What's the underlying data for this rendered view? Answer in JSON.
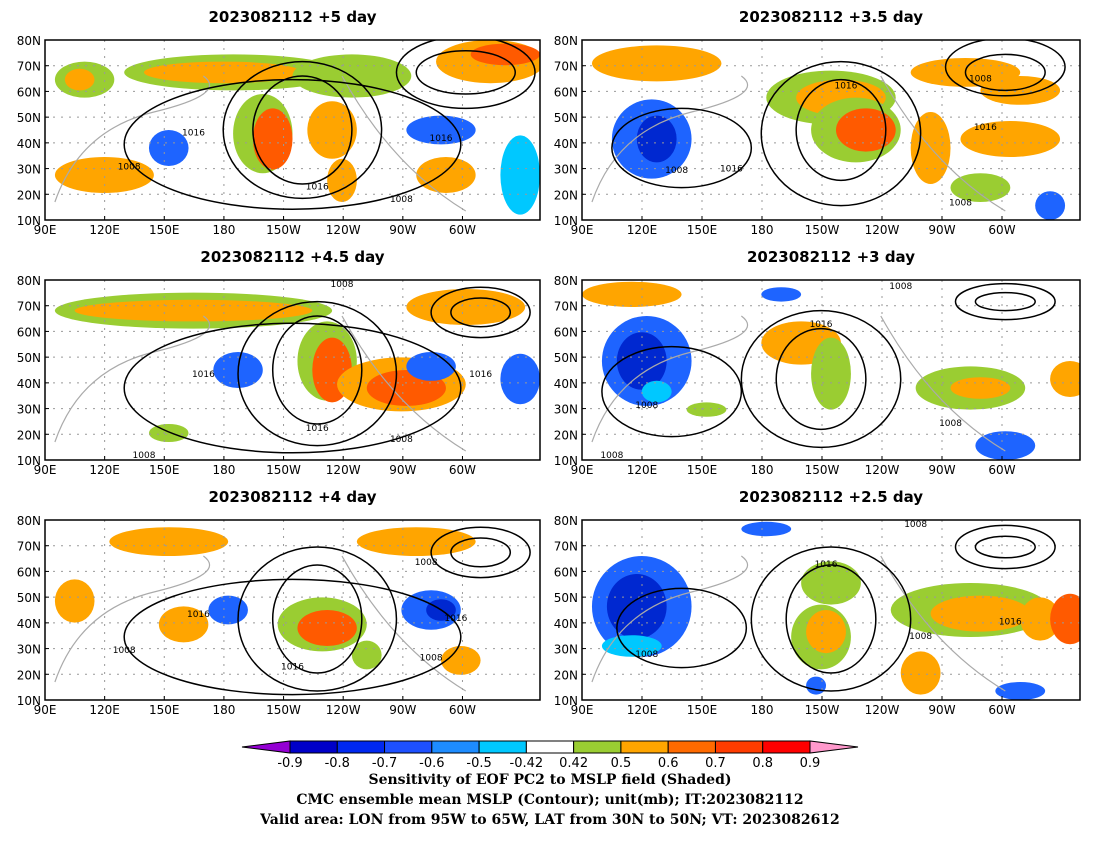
{
  "panels": [
    {
      "title": "2023082112  +5 day",
      "contour_labels": [
        "1016",
        "1008",
        "1016",
        "1016",
        "1008"
      ]
    },
    {
      "title": "2023082112  +3.5 day",
      "contour_labels": [
        "1016",
        "1008",
        "1016",
        "1008",
        "1016",
        "1008"
      ]
    },
    {
      "title": "2023082112  +4.5 day",
      "contour_labels": [
        "1008",
        "1016",
        "1016",
        "1008",
        "1016",
        "1008"
      ]
    },
    {
      "title": "2023082112  +3 day",
      "contour_labels": [
        "1008",
        "1016",
        "1008",
        "1008",
        "1008"
      ]
    },
    {
      "title": "2023082112  +4 day",
      "contour_labels": [
        "1008",
        "1016",
        "1016",
        "1008",
        "1016",
        "1008"
      ]
    },
    {
      "title": "2023082112  +2.5 day",
      "contour_labels": [
        "1008",
        "1016",
        "1008",
        "1008",
        "1016"
      ]
    }
  ],
  "lat_ticks": [
    "10N",
    "20N",
    "30N",
    "40N",
    "50N",
    "60N",
    "70N",
    "80N"
  ],
  "lon_ticks": [
    "90E",
    "120E",
    "150E",
    "180",
    "150W",
    "120W",
    "90W",
    "60W"
  ],
  "colorbar": {
    "tick_labels": [
      "-0.9",
      "-0.8",
      "-0.7",
      "-0.6",
      "-0.5",
      "-0.42",
      "0.42",
      "0.5",
      "0.6",
      "0.7",
      "0.8",
      "0.9"
    ],
    "colors": [
      "#9400d3",
      "#0000c8",
      "#0028f0",
      "#1e50ff",
      "#1e8cff",
      "#00c8ff",
      "#ffffff",
      "#9acd32",
      "#ffa500",
      "#ff6a00",
      "#ff3c00",
      "#ff0000",
      "#ff99cc"
    ]
  },
  "captions": [
    "Sensitivity of EOF PC2 to MSLP field (Shaded)",
    "CMC ensemble mean MSLP (Contour); unit(mb); IT:2023082112",
    "Valid area: LON from 95W to 65W, LAT from 30N to 50N; VT: 2023082612"
  ]
}
